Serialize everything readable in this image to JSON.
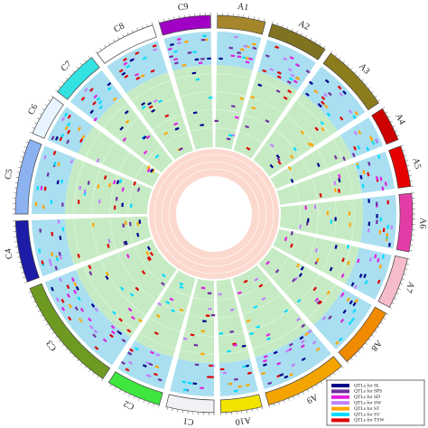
{
  "chromosomes": [
    {
      "label": "A1",
      "color": "#a6862a"
    },
    {
      "label": "A2",
      "color": "#7f7220"
    },
    {
      "label": "A3",
      "color": "#8c7d1c"
    },
    {
      "label": "A4",
      "color": "#cc0000"
    },
    {
      "label": "A5",
      "color": "#e60000"
    },
    {
      "label": "A6",
      "color": "#e43ca6"
    },
    {
      "label": "A7",
      "color": "#f6bccb"
    },
    {
      "label": "A8",
      "color": "#f08a00"
    },
    {
      "label": "A9",
      "color": "#f4a400"
    },
    {
      "label": "A10",
      "color": "#f2e400"
    },
    {
      "label": "C1",
      "color": "#f2f2f6"
    },
    {
      "label": "C2",
      "color": "#3ee63e"
    },
    {
      "label": "C3",
      "color": "#6e9a22"
    },
    {
      "label": "C4",
      "color": "#1c1ca6"
    },
    {
      "label": "C5",
      "color": "#8cb2f2"
    },
    {
      "label": "C6",
      "color": "#e8f4ff"
    },
    {
      "label": "C7",
      "color": "#34e2e2"
    },
    {
      "label": "C8",
      "color": "#ffffff"
    },
    {
      "label": "C9",
      "color": "#a000c4"
    }
  ],
  "legend": [
    {
      "label": "QTLs for SL",
      "color": "#00008b"
    },
    {
      "label": "QTLs for SPS",
      "color": "#7030a0"
    },
    {
      "label": "QTLs for SD",
      "color": "#e020e0"
    },
    {
      "label": "QTLs for SW",
      "color": "#c080ff"
    },
    {
      "label": "QTLs for ST",
      "color": "#ffa500"
    },
    {
      "label": "QTLs for SV",
      "color": "#00dcff"
    },
    {
      "label": "QTLs for TSW",
      "color": "#e00000"
    }
  ]
}
